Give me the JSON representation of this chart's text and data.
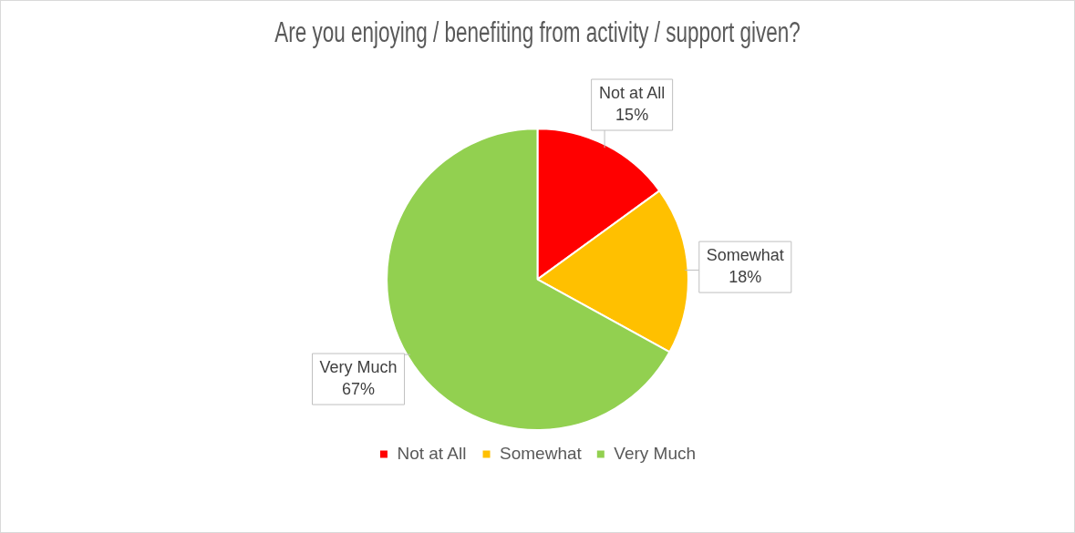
{
  "chart_data": {
    "type": "pie",
    "title": "Are you enjoying / benefiting from activity / support given?",
    "categories": [
      "Not at All",
      "Somewhat",
      "Very Much"
    ],
    "values": [
      15,
      18,
      67
    ],
    "colors": [
      "#ff0000",
      "#ffc000",
      "#92d050"
    ],
    "value_labels": [
      "15%",
      "18%",
      "67%"
    ],
    "legend": "bottom"
  }
}
